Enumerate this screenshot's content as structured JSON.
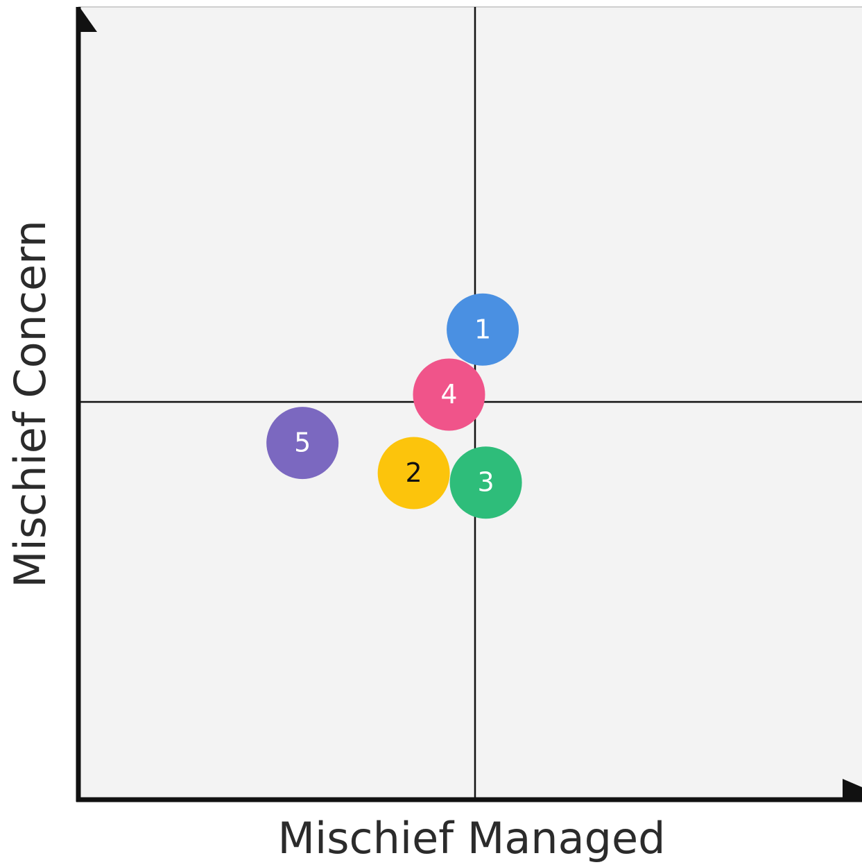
{
  "chart_data": {
    "type": "scatter",
    "x_label": "Mischief Managed",
    "y_label": "Mischief Concern",
    "xlim": [
      0,
      100
    ],
    "ylim": [
      0,
      100
    ],
    "quadrants": true,
    "points": [
      {
        "label": "1",
        "x": 51.6,
        "y": 59.3,
        "color": "#4a90e2",
        "text_color": "#ffffff"
      },
      {
        "label": "2",
        "x": 42.8,
        "y": 41.2,
        "color": "#fcc40c",
        "text_color": "#111111"
      },
      {
        "label": "3",
        "x": 52.0,
        "y": 40.0,
        "color": "#2ebd7a",
        "text_color": "#ffffff"
      },
      {
        "label": "4",
        "x": 47.3,
        "y": 51.1,
        "color": "#f0548a",
        "text_color": "#ffffff"
      },
      {
        "label": "5",
        "x": 28.6,
        "y": 45.0,
        "color": "#7b68c0",
        "text_color": "#ffffff"
      }
    ]
  }
}
